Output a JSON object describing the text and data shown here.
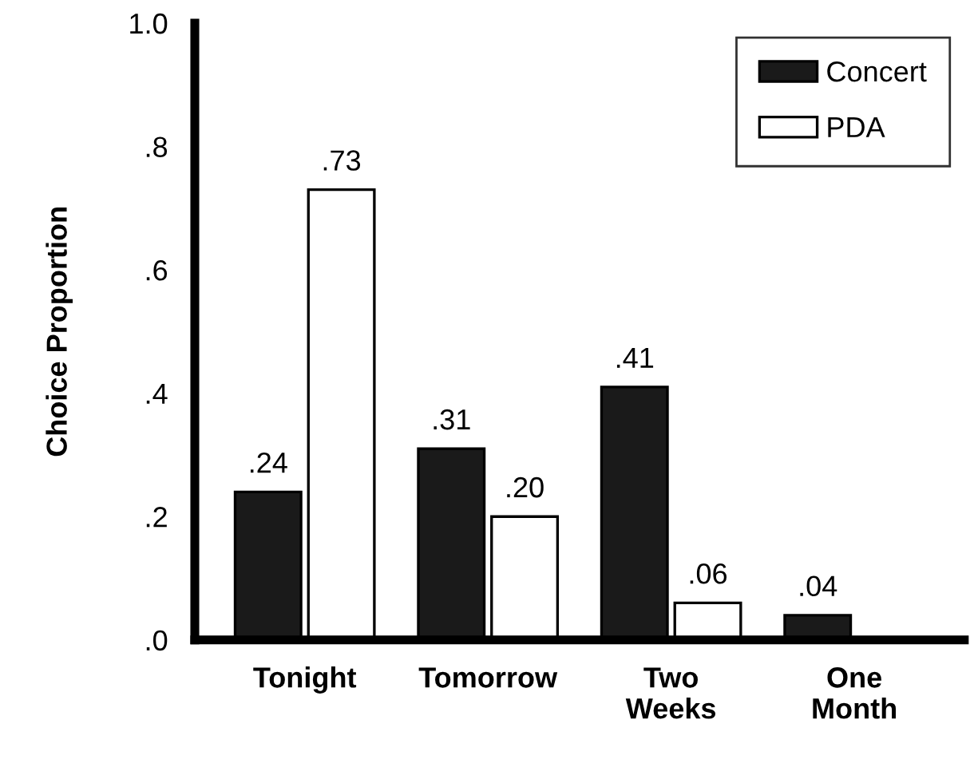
{
  "chart_data": {
    "type": "bar",
    "ylabel": "Choice Proportion",
    "categories": [
      "Tonight",
      "Tomorrow",
      "Two\nWeeks",
      "One\nMonth"
    ],
    "series": [
      {
        "name": "Concert",
        "color": "#1a1a1a",
        "values": [
          0.24,
          0.31,
          0.41,
          0.04
        ],
        "value_labels": [
          ".24",
          ".31",
          ".41",
          ".04"
        ]
      },
      {
        "name": "PDA",
        "color": "#ffffff",
        "values": [
          0.73,
          0.2,
          0.06,
          null
        ],
        "value_labels": [
          ".73",
          ".20",
          ".06",
          null
        ]
      }
    ],
    "ylim": [
      0,
      1.0
    ],
    "yticks": [
      {
        "value": 0,
        "label": ".0"
      },
      {
        "value": 0.2,
        "label": ".2"
      },
      {
        "value": 0.4,
        "label": ".4"
      },
      {
        "value": 0.6,
        "label": ".6"
      },
      {
        "value": 0.8,
        "label": ".8"
      },
      {
        "value": 1.0,
        "label": "1.0"
      }
    ],
    "grid": false,
    "legend": "top right"
  }
}
